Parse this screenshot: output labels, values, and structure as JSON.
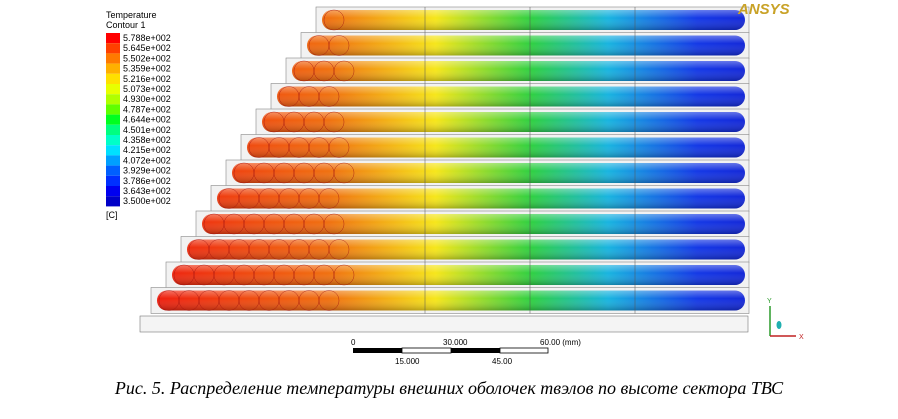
{
  "figure": {
    "legend": {
      "title": "Temperature",
      "subtitle": "Contour 1",
      "labels": [
        "5.788e+002",
        "5.645e+002",
        "5.502e+002",
        "5.359e+002",
        "5.216e+002",
        "5.073e+002",
        "4.930e+002",
        "4.787e+002",
        "4.644e+002",
        "4.501e+002",
        "4.358e+002",
        "4.215e+002",
        "4.072e+002",
        "3.929e+002",
        "3.786e+002",
        "3.643e+002",
        "3.500e+002"
      ],
      "unit": "[C]"
    },
    "logo": "ANSYS",
    "scale_bar": {
      "top_labels": [
        "0",
        "30.000",
        "60.00  (mm)"
      ],
      "bottom_labels": [
        "15.000",
        "45.00"
      ]
    },
    "axes": {
      "y": "Y",
      "x": "X"
    },
    "caption": "Рис. 5. Распределение температуры внешних оболочек твэлов по высоте сектора ТВС"
  }
}
